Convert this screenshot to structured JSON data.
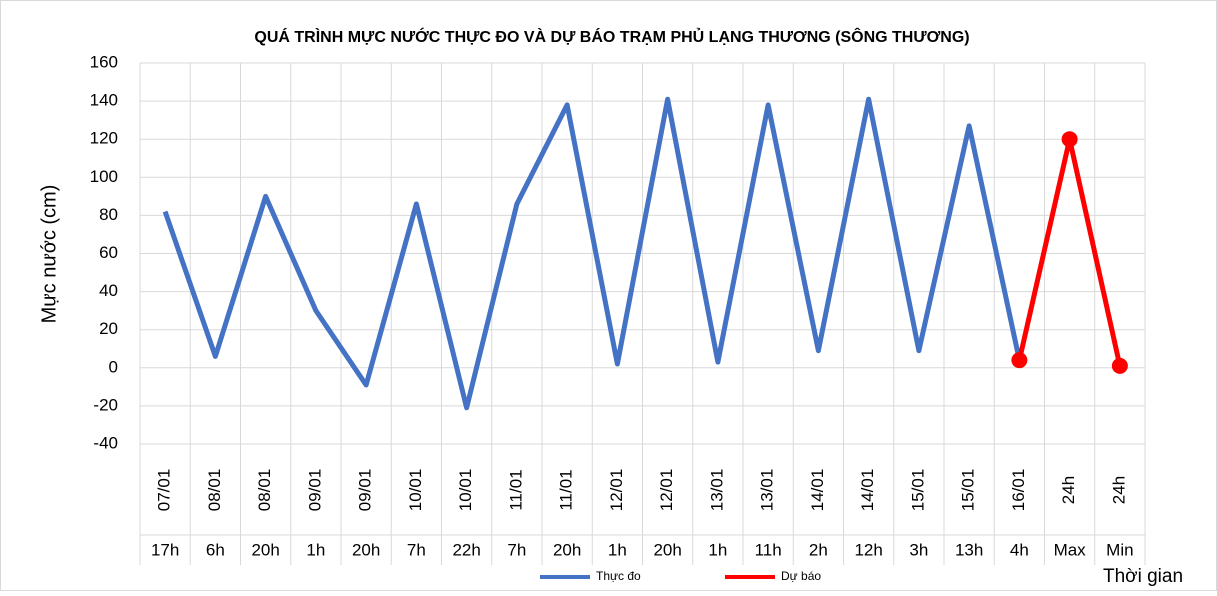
{
  "chart_data": {
    "type": "line",
    "title": "QUÁ TRÌNH MỰC NƯỚC THỰC ĐO VÀ DỰ BÁO TRẠM PHỦ LẠNG THƯƠNG (SÔNG THƯƠNG)",
    "y_label": "Mực nước (cm)",
    "x_label": "Thời gian",
    "categories": [
      {
        "date": "07/01",
        "time": "17h"
      },
      {
        "date": "08/01",
        "time": "6h"
      },
      {
        "date": "08/01",
        "time": "20h"
      },
      {
        "date": "09/01",
        "time": "1h"
      },
      {
        "date": "09/01",
        "time": "20h"
      },
      {
        "date": "10/01",
        "time": "7h"
      },
      {
        "date": "10/01",
        "time": "22h"
      },
      {
        "date": "11/01",
        "time": "7h"
      },
      {
        "date": "11/01",
        "time": "20h"
      },
      {
        "date": "12/01",
        "time": "1h"
      },
      {
        "date": "12/01",
        "time": "20h"
      },
      {
        "date": "13/01",
        "time": "1h"
      },
      {
        "date": "13/01",
        "time": "11h"
      },
      {
        "date": "14/01",
        "time": "2h"
      },
      {
        "date": "14/01",
        "time": "12h"
      },
      {
        "date": "15/01",
        "time": "3h"
      },
      {
        "date": "15/01",
        "time": "13h"
      },
      {
        "date": "16/01",
        "time": "4h"
      },
      {
        "date": "24h",
        "time": "Max"
      },
      {
        "date": "24h",
        "time": "Min"
      }
    ],
    "series": [
      {
        "name": "Thực đo",
        "color": "#4472c4",
        "markers": false,
        "values": [
          82,
          6,
          90,
          30,
          -9,
          86,
          -21,
          86,
          138,
          2,
          141,
          3,
          138,
          9,
          141,
          9,
          127,
          4,
          null,
          null
        ]
      },
      {
        "name": "Dự báo",
        "color": "#ff0000",
        "markers": true,
        "values": [
          null,
          null,
          null,
          null,
          null,
          null,
          null,
          null,
          null,
          null,
          null,
          null,
          null,
          null,
          null,
          null,
          null,
          4,
          120,
          1
        ]
      }
    ],
    "ylim": [
      -40,
      160
    ],
    "yticks": [
      -40,
      -20,
      0,
      20,
      40,
      60,
      80,
      100,
      120,
      140,
      160
    ],
    "grid": true
  }
}
